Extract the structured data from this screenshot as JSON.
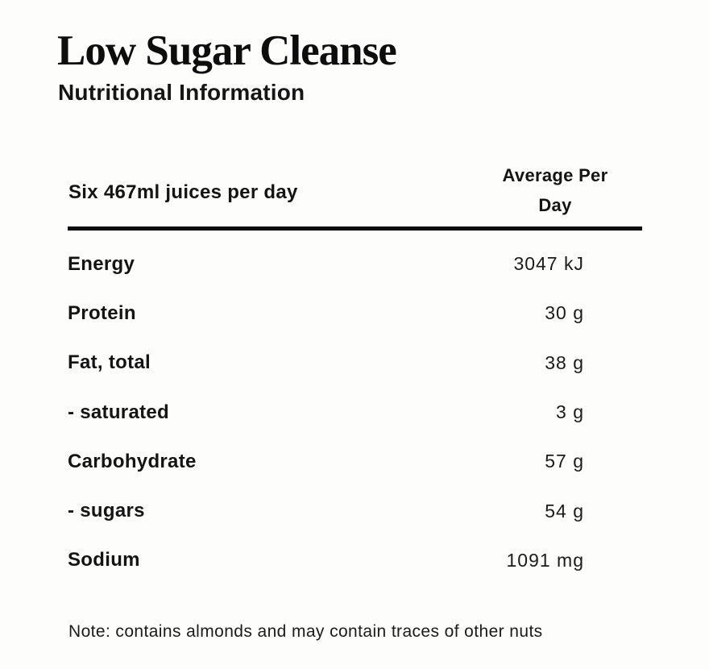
{
  "page": {
    "title": "Low Sugar Cleanse",
    "subtitle": "Nutritional Information"
  },
  "table": {
    "serving_header": "Six 467ml juices per day",
    "value_header": "Average Per Day",
    "rows": [
      {
        "label": "Energy",
        "value": "3047 kJ"
      },
      {
        "label": "Protein",
        "value": "30 g"
      },
      {
        "label": "Fat, total",
        "value": "38 g"
      },
      {
        "label": "- saturated",
        "value": "3 g"
      },
      {
        "label": "Carbohydrate",
        "value": "57 g"
      },
      {
        "label": "- sugars",
        "value": "54 g"
      },
      {
        "label": "Sodium",
        "value": "1091 mg"
      }
    ]
  },
  "note": "Note: contains almonds and may contain traces of other nuts",
  "colors": {
    "background": "#fdfdfc",
    "text": "#141414",
    "rule": "#0d0d0d"
  }
}
